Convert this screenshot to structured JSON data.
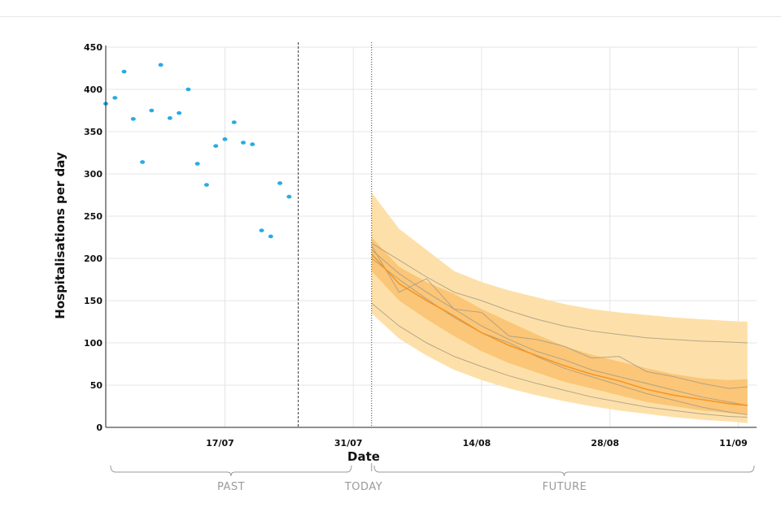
{
  "chart_data": {
    "type": "scatter",
    "title": "",
    "xlabel": "Date",
    "ylabel": "Hospitalisations per day",
    "ylim": [
      0,
      450
    ],
    "yticks": [
      0,
      50,
      100,
      150,
      200,
      250,
      300,
      350,
      400,
      450
    ],
    "x_axis": {
      "start": "2021-07-04",
      "end": "2021-09-13",
      "tick_dates": [
        "2021-07-17",
        "2021-07-31",
        "2021-08-14",
        "2021-08-28",
        "2021-09-11"
      ],
      "tick_labels": [
        "17/07",
        "31/07",
        "14/08",
        "28/08",
        "11/09"
      ]
    },
    "grid": true,
    "colors": {
      "observed": "#29abe2",
      "median": "#f7931e",
      "band_outer": "#fde0a9",
      "band_inner": "#fbc677",
      "scenario_lines": "#a89b86",
      "grid": "#e4e4e4",
      "brace": "#9a9a9a"
    },
    "reference_lines": [
      {
        "date": "2021-07-25",
        "style": "dashed"
      },
      {
        "date": "2021-08-02",
        "style": "dotted"
      }
    ],
    "observed": {
      "x": [
        "2021-07-04",
        "2021-07-05",
        "2021-07-06",
        "2021-07-07",
        "2021-07-08",
        "2021-07-09",
        "2021-07-10",
        "2021-07-11",
        "2021-07-12",
        "2021-07-13",
        "2021-07-14",
        "2021-07-15",
        "2021-07-16",
        "2021-07-17",
        "2021-07-18",
        "2021-07-19",
        "2021-07-20",
        "2021-07-21",
        "2021-07-22",
        "2021-07-23",
        "2021-07-24",
        "2021-07-25"
      ],
      "y": [
        383,
        390,
        421,
        365,
        314,
        375,
        429,
        366,
        372,
        400,
        312,
        287,
        333,
        341,
        361,
        337,
        335,
        233,
        226,
        289,
        273,
        null
      ]
    },
    "projection": {
      "x": [
        "2021-08-02",
        "2021-08-05",
        "2021-08-08",
        "2021-08-11",
        "2021-08-14",
        "2021-08-17",
        "2021-08-20",
        "2021-08-23",
        "2021-08-26",
        "2021-08-29",
        "2021-09-01",
        "2021-09-04",
        "2021-09-07",
        "2021-09-10",
        "2021-09-12"
      ],
      "median": [
        205,
        170,
        150,
        132,
        112,
        97,
        85,
        73,
        63,
        55,
        45,
        38,
        33,
        28,
        26
      ],
      "band_inner_low": [
        185,
        150,
        128,
        108,
        90,
        76,
        65,
        54,
        46,
        38,
        30,
        25,
        20,
        17,
        15
      ],
      "band_inner_high": [
        225,
        190,
        172,
        158,
        140,
        125,
        110,
        96,
        86,
        78,
        70,
        63,
        58,
        56,
        57
      ],
      "band_outer_low": [
        135,
        105,
        85,
        68,
        56,
        46,
        38,
        31,
        25,
        20,
        16,
        12,
        9,
        7,
        5
      ],
      "band_outer_high": [
        278,
        235,
        210,
        185,
        172,
        162,
        154,
        146,
        140,
        136,
        133,
        130,
        128,
        126,
        125
      ],
      "scenario_lines": [
        [
          218,
          198,
          178,
          160,
          150,
          138,
          128,
          120,
          114,
          110,
          106,
          104,
          102,
          101,
          100
        ],
        [
          147,
          120,
          100,
          84,
          72,
          61,
          52,
          44,
          36,
          30,
          24,
          20,
          16,
          13,
          12
        ],
        [
          210,
          182,
          160,
          140,
          120,
          104,
          90,
          80,
          68,
          60,
          52,
          44,
          36,
          30,
          26
        ],
        [
          200,
          175,
          152,
          130,
          112,
          100,
          84,
          70,
          60,
          50,
          40,
          32,
          24,
          18,
          15
        ],
        [
          215,
          160,
          176,
          140,
          136,
          108,
          104,
          96,
          82,
          84,
          66,
          60,
          52,
          46,
          48
        ]
      ]
    },
    "periods": {
      "past": "PAST",
      "today": "TODAY",
      "future": "FUTURE"
    }
  }
}
